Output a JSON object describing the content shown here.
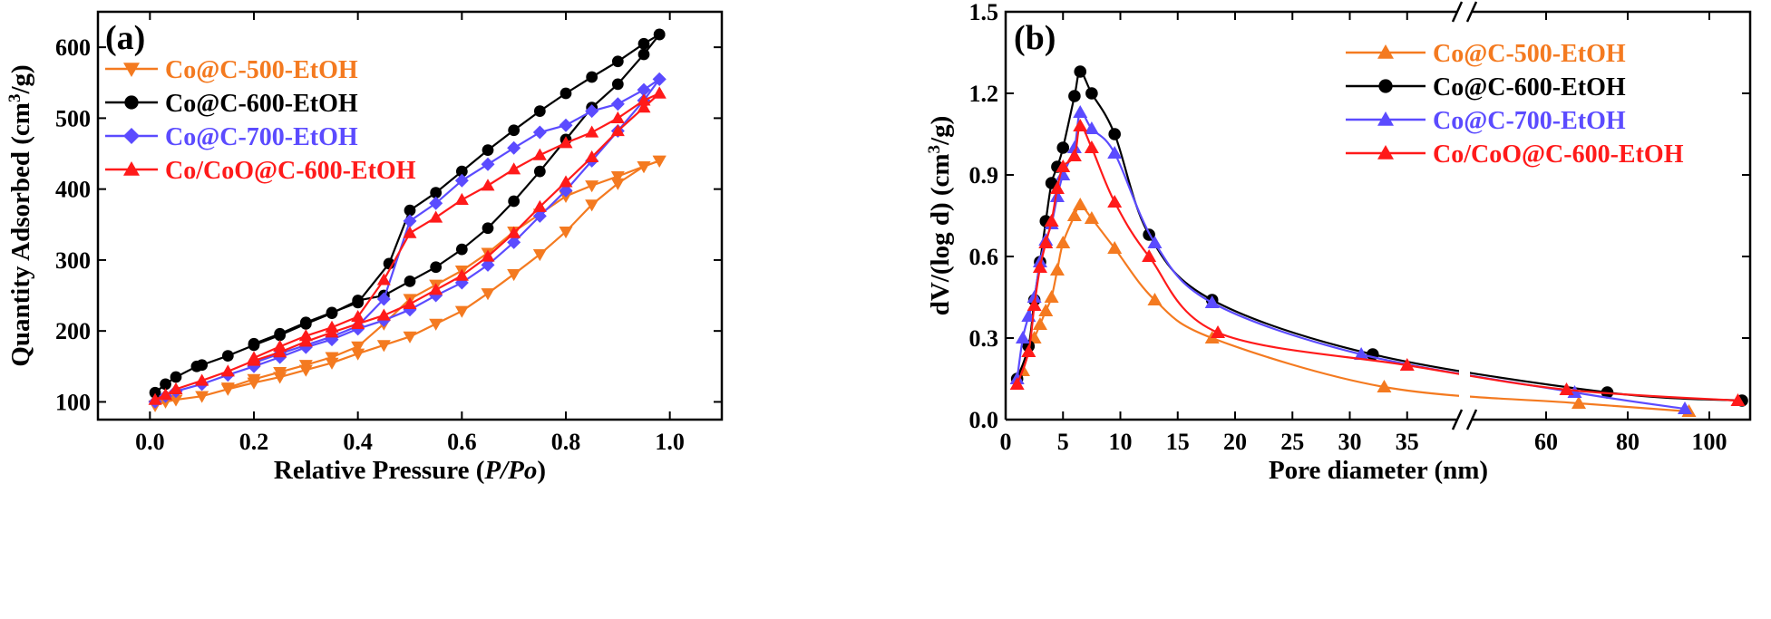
{
  "colors": {
    "Co@C-500-EtOH": "#f47a20",
    "Co@C-600-EtOH": "#000000",
    "Co@C-700-EtOH": "#5b4bff",
    "Co/CoO@C-600-EtOH": "#ff1a1a"
  },
  "chart_data": [
    {
      "type": "line",
      "panel_label": "(a)",
      "xlabel_prefix": "Relative Pressure (",
      "xlabel_italic": "P/Po",
      "xlabel_suffix": ")",
      "ylabel": "Quantity Adsorbed (cm",
      "ylabel_sup": "3",
      "ylabel_end": "/g)",
      "xlim": [
        -0.1,
        1.1
      ],
      "ylim": [
        75,
        650
      ],
      "xticks": [
        "0.0",
        "0.2",
        "0.4",
        "0.6",
        "0.8",
        "1.0"
      ],
      "xtick_values": [
        0.0,
        0.2,
        0.4,
        0.6,
        0.8,
        1.0
      ],
      "yticks": [
        "100",
        "200",
        "300",
        "400",
        "500",
        "600"
      ],
      "ytick_values": [
        100,
        200,
        300,
        400,
        500,
        600
      ],
      "legend_position": "top-left",
      "series": [
        {
          "name": "Co@C-500-EtOH",
          "marker": "triangle-down",
          "adsorption": [
            [
              0.01,
              95
            ],
            [
              0.03,
              100
            ],
            [
              0.05,
              103
            ],
            [
              0.1,
              108
            ],
            [
              0.15,
              118
            ],
            [
              0.2,
              127
            ],
            [
              0.25,
              135
            ],
            [
              0.3,
              145
            ],
            [
              0.35,
              155
            ],
            [
              0.4,
              168
            ],
            [
              0.45,
              180
            ],
            [
              0.5,
              192
            ],
            [
              0.55,
              210
            ],
            [
              0.6,
              228
            ],
            [
              0.65,
              253
            ],
            [
              0.7,
              280
            ],
            [
              0.75,
              308
            ],
            [
              0.8,
              340
            ],
            [
              0.85,
              378
            ],
            [
              0.9,
              408
            ],
            [
              0.95,
              432
            ],
            [
              0.98,
              440
            ]
          ],
          "desorption": [
            [
              0.98,
              440
            ],
            [
              0.95,
              432
            ],
            [
              0.9,
              418
            ],
            [
              0.85,
              405
            ],
            [
              0.8,
              390
            ],
            [
              0.75,
              365
            ],
            [
              0.7,
              340
            ],
            [
              0.65,
              310
            ],
            [
              0.6,
              285
            ],
            [
              0.55,
              265
            ],
            [
              0.5,
              245
            ],
            [
              0.45,
              210
            ],
            [
              0.4,
              178
            ],
            [
              0.35,
              163
            ],
            [
              0.3,
              152
            ],
            [
              0.25,
              142
            ],
            [
              0.2,
              132
            ],
            [
              0.15,
              120
            ]
          ]
        },
        {
          "name": "Co@C-600-EtOH",
          "marker": "circle",
          "adsorption": [
            [
              0.01,
              113
            ],
            [
              0.03,
              125
            ],
            [
              0.05,
              135
            ],
            [
              0.09,
              150
            ],
            [
              0.1,
              152
            ],
            [
              0.15,
              165
            ],
            [
              0.2,
              180
            ],
            [
              0.25,
              194
            ],
            [
              0.3,
              210
            ],
            [
              0.35,
              225
            ],
            [
              0.4,
              243
            ],
            [
              0.45,
              250
            ],
            [
              0.5,
              270
            ],
            [
              0.55,
              290
            ],
            [
              0.6,
              315
            ],
            [
              0.65,
              345
            ],
            [
              0.7,
              383
            ],
            [
              0.75,
              425
            ],
            [
              0.8,
              470
            ],
            [
              0.85,
              515
            ],
            [
              0.9,
              548
            ],
            [
              0.95,
              590
            ],
            [
              0.98,
              618
            ]
          ],
          "desorption": [
            [
              0.98,
              618
            ],
            [
              0.95,
              605
            ],
            [
              0.9,
              580
            ],
            [
              0.85,
              558
            ],
            [
              0.8,
              535
            ],
            [
              0.75,
              510
            ],
            [
              0.7,
              483
            ],
            [
              0.65,
              455
            ],
            [
              0.6,
              425
            ],
            [
              0.55,
              395
            ],
            [
              0.5,
              370
            ],
            [
              0.46,
              295
            ],
            [
              0.4,
              240
            ],
            [
              0.35,
              226
            ],
            [
              0.3,
              212
            ],
            [
              0.25,
              196
            ],
            [
              0.2,
              182
            ]
          ]
        },
        {
          "name": "Co@C-700-EtOH",
          "marker": "diamond",
          "adsorption": [
            [
              0.01,
              100
            ],
            [
              0.03,
              108
            ],
            [
              0.05,
              115
            ],
            [
              0.1,
              125
            ],
            [
              0.15,
              138
            ],
            [
              0.2,
              150
            ],
            [
              0.25,
              163
            ],
            [
              0.3,
              177
            ],
            [
              0.35,
              188
            ],
            [
              0.4,
              203
            ],
            [
              0.45,
              215
            ],
            [
              0.5,
              230
            ],
            [
              0.55,
              250
            ],
            [
              0.6,
              268
            ],
            [
              0.65,
              293
            ],
            [
              0.7,
              325
            ],
            [
              0.75,
              362
            ],
            [
              0.8,
              398
            ],
            [
              0.85,
              440
            ],
            [
              0.9,
              482
            ],
            [
              0.95,
              525
            ],
            [
              0.98,
              555
            ]
          ],
          "desorption": [
            [
              0.98,
              555
            ],
            [
              0.95,
              540
            ],
            [
              0.9,
              520
            ],
            [
              0.85,
              510
            ],
            [
              0.8,
              490
            ],
            [
              0.75,
              480
            ],
            [
              0.7,
              458
            ],
            [
              0.65,
              435
            ],
            [
              0.6,
              412
            ],
            [
              0.55,
              380
            ],
            [
              0.5,
              355
            ],
            [
              0.45,
              245
            ],
            [
              0.4,
              207
            ],
            [
              0.35,
              192
            ],
            [
              0.3,
              180
            ],
            [
              0.25,
              168
            ],
            [
              0.2,
              155
            ]
          ]
        },
        {
          "name": "Co/CoO@C-600-EtOH",
          "marker": "triangle-up",
          "adsorption": [
            [
              0.01,
              103
            ],
            [
              0.03,
              110
            ],
            [
              0.05,
              118
            ],
            [
              0.1,
              130
            ],
            [
              0.15,
              143
            ],
            [
              0.2,
              158
            ],
            [
              0.25,
              170
            ],
            [
              0.3,
              185
            ],
            [
              0.35,
              198
            ],
            [
              0.4,
              210
            ],
            [
              0.45,
              222
            ],
            [
              0.5,
              238
            ],
            [
              0.55,
              258
            ],
            [
              0.6,
              278
            ],
            [
              0.65,
              305
            ],
            [
              0.7,
              338
            ],
            [
              0.75,
              375
            ],
            [
              0.8,
              410
            ],
            [
              0.85,
              445
            ],
            [
              0.9,
              482
            ],
            [
              0.95,
              515
            ],
            [
              0.98,
              535
            ]
          ],
          "desorption": [
            [
              0.98,
              535
            ],
            [
              0.95,
              525
            ],
            [
              0.9,
              500
            ],
            [
              0.85,
              480
            ],
            [
              0.8,
              465
            ],
            [
              0.75,
              448
            ],
            [
              0.7,
              428
            ],
            [
              0.65,
              405
            ],
            [
              0.6,
              385
            ],
            [
              0.55,
              360
            ],
            [
              0.5,
              338
            ],
            [
              0.45,
              272
            ],
            [
              0.4,
              220
            ],
            [
              0.35,
              205
            ],
            [
              0.3,
              193
            ],
            [
              0.25,
              178
            ],
            [
              0.2,
              162
            ]
          ]
        }
      ]
    },
    {
      "type": "line",
      "panel_label": "(b)",
      "xlabel": "Pore diameter (nm)",
      "ylabel": "dV/(log d) (cm",
      "ylabel_sup": "3",
      "ylabel_end": "/g)",
      "x_axis_break": true,
      "xlim_segment_1": [
        0,
        40
      ],
      "xlim_segment_2": [
        40,
        110
      ],
      "ylim": [
        0,
        1.5
      ],
      "xticks": [
        "0",
        "5",
        "10",
        "15",
        "20",
        "25",
        "30",
        "35",
        "60",
        "80",
        "100"
      ],
      "xtick_values": [
        0,
        5,
        10,
        15,
        20,
        25,
        30,
        35,
        60,
        80,
        100
      ],
      "yticks": [
        "0.0",
        "0.3",
        "0.6",
        "0.9",
        "1.2",
        "1.5"
      ],
      "ytick_values": [
        0,
        0.3,
        0.6,
        0.9,
        1.2,
        1.5
      ],
      "legend_position": "top-right",
      "series": [
        {
          "name": "Co@C-500-EtOH",
          "marker": "triangle-up",
          "x": [
            1,
            1.5,
            2,
            2.5,
            3,
            3.5,
            4,
            4.5,
            5,
            6,
            6.5,
            7.5,
            9.5,
            13,
            18,
            33,
            68,
            95
          ],
          "y": [
            0.15,
            0.18,
            0.25,
            0.3,
            0.35,
            0.4,
            0.45,
            0.55,
            0.65,
            0.75,
            0.79,
            0.74,
            0.63,
            0.44,
            0.3,
            0.12,
            0.06,
            0.03
          ]
        },
        {
          "name": "Co@C-600-EtOH",
          "marker": "circle",
          "x": [
            1,
            2,
            2.5,
            3,
            3.5,
            4,
            4.5,
            5,
            6,
            6.5,
            7.5,
            9.5,
            12.5,
            18,
            32,
            75,
            108
          ],
          "y": [
            0.15,
            0.27,
            0.44,
            0.58,
            0.73,
            0.87,
            0.93,
            1.0,
            1.19,
            1.28,
            1.2,
            1.05,
            0.68,
            0.44,
            0.24,
            0.1,
            0.07
          ]
        },
        {
          "name": "Co@C-700-EtOH",
          "marker": "triangle-up",
          "x": [
            1,
            1.5,
            2,
            2.5,
            3,
            3.5,
            4,
            4.5,
            5,
            6,
            6.5,
            7.5,
            9.5,
            13,
            18,
            31,
            67,
            94
          ],
          "y": [
            0.15,
            0.3,
            0.38,
            0.45,
            0.58,
            0.66,
            0.72,
            0.82,
            0.9,
            1.0,
            1.13,
            1.07,
            0.98,
            0.65,
            0.43,
            0.24,
            0.1,
            0.04
          ]
        },
        {
          "name": "Co/CoO@C-600-EtOH",
          "marker": "triangle-up",
          "x": [
            1,
            2,
            2.5,
            3,
            3.5,
            4,
            4.5,
            5,
            6,
            6.5,
            7.5,
            9.5,
            12.5,
            18.5,
            35,
            65,
            107
          ],
          "y": [
            0.13,
            0.25,
            0.42,
            0.56,
            0.65,
            0.73,
            0.85,
            0.93,
            0.97,
            1.08,
            1.0,
            0.8,
            0.6,
            0.32,
            0.2,
            0.11,
            0.07
          ]
        }
      ]
    }
  ]
}
